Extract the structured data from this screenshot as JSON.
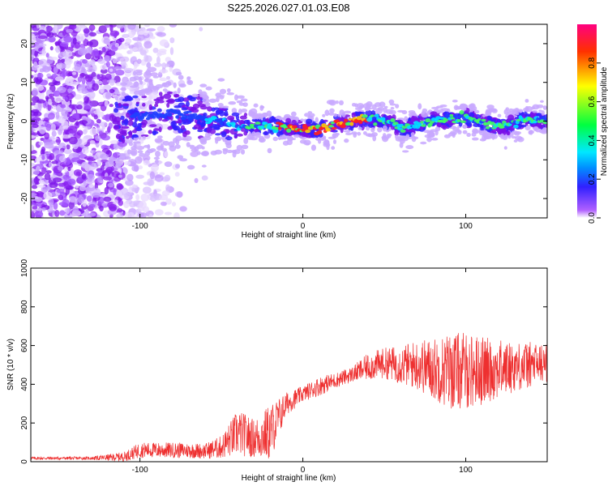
{
  "title": "S225.2026.027.01.03.E08",
  "chart_data": [
    {
      "type": "heatmap",
      "xlabel": "Height of straight line (km)",
      "ylabel": "Frequency (Hz)",
      "xlim": [
        -167,
        150
      ],
      "ylim": [
        -25,
        25
      ],
      "xticks": [
        -100,
        0,
        100
      ],
      "yticks": [
        -20,
        -10,
        0,
        10,
        20
      ],
      "xtick_labels": [
        "-100",
        "0",
        "100"
      ],
      "ytick_labels": [
        "-20",
        "-10",
        "0",
        "10",
        "20"
      ],
      "colorbar": {
        "label": "Normalized spectral amplitude",
        "range": [
          0,
          1
        ],
        "ticks": [
          0.0,
          0.2,
          0.4,
          0.6,
          0.8
        ],
        "tick_labels": [
          "0.0",
          "0.2",
          "0.4",
          "0.6",
          "0.8"
        ],
        "colormap": [
          "#ffffff",
          "#a000ff",
          "#2020ff",
          "#00e0ff",
          "#00ff40",
          "#ffff00",
          "#ff2000",
          "#ff0080"
        ]
      },
      "ridge": {
        "description_points_km_hz": [
          [
            -110,
            0.5
          ],
          [
            -95,
            1.5
          ],
          [
            -80,
            2
          ],
          [
            -65,
            1
          ],
          [
            -50,
            0
          ],
          [
            -40,
            -2
          ],
          [
            -30,
            -1
          ],
          [
            -15,
            -1.5
          ],
          [
            0,
            -2
          ],
          [
            10,
            -2
          ],
          [
            20,
            -1
          ],
          [
            30,
            0
          ],
          [
            40,
            0.5
          ],
          [
            55,
            0
          ],
          [
            60,
            -2
          ],
          [
            70,
            -1
          ],
          [
            80,
            0
          ],
          [
            100,
            1
          ],
          [
            115,
            -1
          ],
          [
            125,
            -1.5
          ],
          [
            135,
            0.5
          ],
          [
            150,
            0
          ]
        ],
        "peak_region_km": [
          -15,
          40
        ]
      }
    },
    {
      "type": "line",
      "xlabel": "Height of straight line (km)",
      "ylabel": "SNR (10 * v/v)",
      "xlim": [
        -167,
        150
      ],
      "ylim": [
        0,
        1000
      ],
      "xticks": [
        -100,
        0,
        100
      ],
      "yticks": [
        0,
        200,
        400,
        600,
        800,
        1000
      ],
      "xtick_labels": [
        "-100",
        "0",
        "100"
      ],
      "ytick_labels": [
        "0",
        "200",
        "400",
        "600",
        "800",
        "1000"
      ],
      "color": "#ee3030",
      "series": [
        {
          "name": "SNR",
          "envelope_x": [
            -167,
            -130,
            -110,
            -100,
            -80,
            -60,
            -50,
            -40,
            -30,
            -20,
            -10,
            0,
            10,
            20,
            30,
            40,
            50,
            60,
            70,
            80,
            90,
            100,
            110,
            120,
            130,
            140,
            150
          ],
          "envelope_mean": [
            18,
            18,
            25,
            60,
            60,
            55,
            75,
            150,
            120,
            150,
            300,
            350,
            390,
            420,
            450,
            490,
            510,
            500,
            500,
            480,
            470,
            470,
            470,
            480,
            490,
            500,
            510
          ],
          "envelope_spread": [
            8,
            8,
            25,
            40,
            40,
            40,
            60,
            120,
            100,
            150,
            60,
            40,
            50,
            40,
            40,
            70,
            80,
            100,
            130,
            160,
            200,
            200,
            180,
            150,
            130,
            120,
            100
          ]
        }
      ]
    }
  ]
}
